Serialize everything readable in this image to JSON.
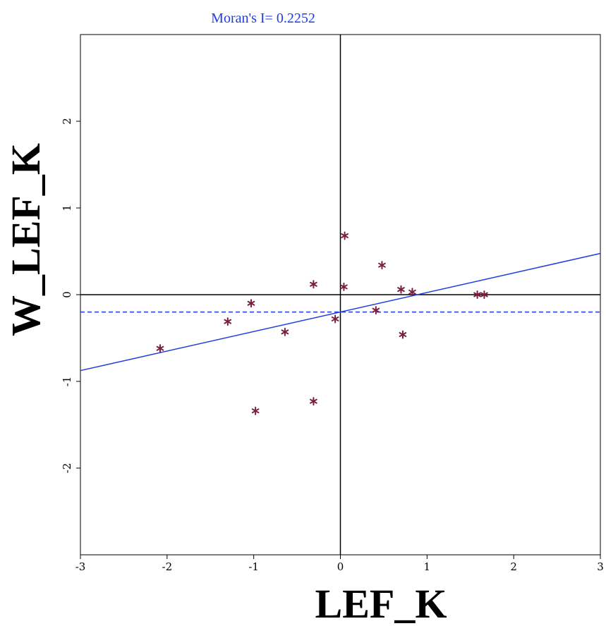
{
  "chart_data": {
    "type": "scatter",
    "title": "Moran's I= 0.2252",
    "xlabel": "LEF_K",
    "ylabel": "W_LEF_K",
    "xlim": [
      -3,
      3
    ],
    "ylim": [
      -3,
      3
    ],
    "x_ticks": [
      -3,
      -2,
      -1,
      0,
      1,
      2,
      3
    ],
    "y_ticks": [
      -2,
      -1,
      0,
      1,
      2
    ],
    "x_tick_labels": [
      "-3",
      "-2",
      "-1",
      "0",
      "1",
      "2",
      "3"
    ],
    "y_tick_labels": [
      "-2",
      "-1",
      "0",
      "1",
      "2"
    ],
    "grid": false,
    "reference_lines": {
      "x": 0,
      "y": 0
    },
    "mean_line_y": -0.2,
    "regression": {
      "slope": 0.2252,
      "intercept": -0.2
    },
    "x": [
      0.05,
      0.48,
      0.7,
      -0.31,
      0.04,
      0.83,
      1.58,
      1.66,
      -1.03,
      0.41,
      -0.06,
      -1.3,
      -0.64,
      0.72,
      -2.08,
      -0.31,
      -0.98
    ],
    "y": [
      0.68,
      0.34,
      0.06,
      0.12,
      0.09,
      0.03,
      0.0,
      0.0,
      -0.1,
      -0.18,
      -0.28,
      -0.31,
      -0.43,
      -0.46,
      -0.62,
      -1.23,
      -1.34
    ],
    "colors": {
      "marker": "#7a1f3d",
      "regression": "#1f3de0",
      "title": "#1f3de0",
      "axes": "#000000"
    }
  }
}
